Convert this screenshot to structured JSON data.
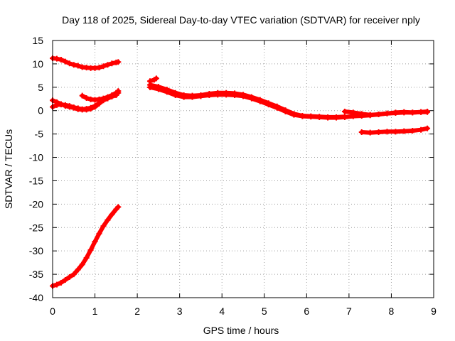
{
  "chart_data": {
    "type": "scatter",
    "title": "Day 118 of 2025, Sidereal Day-to-day VTEC variation (SDTVAR) for receiver nply",
    "xlabel": "GPS time / hours",
    "ylabel": "SDTVAR / TECUs",
    "xlim": [
      0,
      9
    ],
    "ylim": [
      -40,
      15
    ],
    "xticks": [
      "0",
      "1",
      "2",
      "3",
      "4",
      "5",
      "6",
      "7",
      "8",
      "9"
    ],
    "yticks": [
      "15",
      "10",
      "5",
      "0",
      "-5",
      "-10",
      "-15",
      "-20",
      "-25",
      "-30",
      "-35",
      "-40"
    ],
    "grid": true,
    "series_color": "#ff0000",
    "series": [
      {
        "name": "track-1",
        "x": [
          0.0,
          0.1,
          0.2,
          0.3,
          0.4,
          0.5,
          0.6,
          0.7,
          0.8,
          0.9,
          1.0,
          1.1,
          1.2,
          1.3,
          1.4,
          1.5,
          1.55
        ],
        "y": [
          11.2,
          11.1,
          10.9,
          10.5,
          10.1,
          9.8,
          9.6,
          9.3,
          9.2,
          9.1,
          9.1,
          9.2,
          9.5,
          9.8,
          10.1,
          10.3,
          10.4
        ]
      },
      {
        "name": "track-2",
        "x": [
          0.0,
          0.1,
          0.2,
          0.3,
          0.4,
          0.5,
          0.6,
          0.7,
          0.8,
          0.9,
          1.0,
          1.1,
          1.2,
          1.3,
          1.4,
          1.5,
          1.55
        ],
        "y": [
          2.2,
          1.8,
          1.4,
          1.0,
          0.8,
          0.6,
          0.3,
          0.2,
          0.2,
          0.4,
          0.8,
          1.5,
          2.3,
          2.8,
          3.2,
          3.6,
          3.8
        ]
      },
      {
        "name": "track-3",
        "x": [
          0.0,
          0.1,
          0.2,
          0.3,
          0.4,
          0.5,
          0.6,
          0.7,
          0.8,
          0.9,
          1.0,
          1.1,
          1.2,
          1.3,
          1.4,
          1.5
        ],
        "y": [
          0.8,
          1.2,
          1.3,
          1.2,
          1.0,
          0.7,
          0.5,
          0.3,
          0.4,
          0.6,
          1.0,
          1.6,
          2.2,
          2.6,
          3.0,
          3.3
        ]
      },
      {
        "name": "track-4",
        "x": [
          0.7,
          0.8,
          0.9,
          1.0,
          1.1,
          1.2,
          1.3,
          1.4,
          1.5,
          1.55
        ],
        "y": [
          3.2,
          2.7,
          2.4,
          2.3,
          2.4,
          2.6,
          2.9,
          3.3,
          3.8,
          4.2
        ]
      },
      {
        "name": "track-5",
        "x": [
          0.0,
          0.1,
          0.2,
          0.3,
          0.4,
          0.5,
          0.6,
          0.7,
          0.8,
          0.9,
          1.0,
          1.1,
          1.2,
          1.3,
          1.4,
          1.5,
          1.55
        ],
        "y": [
          -37.5,
          -37.2,
          -36.8,
          -36.2,
          -35.6,
          -35.0,
          -34.0,
          -32.9,
          -31.5,
          -29.8,
          -28.0,
          -26.3,
          -24.7,
          -23.4,
          -22.2,
          -21.1,
          -20.6
        ]
      },
      {
        "name": "track-6",
        "x": [
          2.3,
          2.4,
          2.45
        ],
        "y": [
          6.3,
          6.6,
          6.9
        ]
      },
      {
        "name": "track-7",
        "x": [
          2.3,
          2.5,
          2.7,
          2.9,
          3.1,
          3.3,
          3.5,
          3.7,
          3.9,
          4.1,
          4.3,
          4.5,
          4.7,
          4.9,
          5.1,
          5.3,
          5.5,
          5.7,
          5.9,
          6.1,
          6.3,
          6.5,
          6.7,
          6.9,
          7.1,
          7.3,
          7.5,
          7.7,
          7.9,
          8.1,
          8.3,
          8.5,
          8.7,
          8.85
        ],
        "y": [
          5.0,
          4.6,
          4.0,
          3.3,
          2.9,
          2.9,
          3.1,
          3.3,
          3.4,
          3.4,
          3.3,
          3.1,
          2.6,
          2.0,
          1.3,
          0.6,
          -0.2,
          -0.9,
          -1.2,
          -1.3,
          -1.4,
          -1.5,
          -1.5,
          -1.4,
          -1.2,
          -1.1,
          -1.0,
          -0.8,
          -0.6,
          -0.5,
          -0.4,
          -0.4,
          -0.3,
          -0.3
        ]
      },
      {
        "name": "track-8",
        "x": [
          2.3,
          2.5,
          2.7,
          2.9,
          3.1,
          3.3,
          3.5,
          3.7,
          3.9,
          4.1,
          4.3,
          4.5,
          4.7,
          4.9,
          5.1,
          5.3,
          5.5,
          5.7,
          5.9,
          6.1,
          6.3,
          6.5,
          6.7,
          6.9
        ],
        "y": [
          5.5,
          5.1,
          4.5,
          3.8,
          3.3,
          3.2,
          3.3,
          3.6,
          3.8,
          3.8,
          3.7,
          3.4,
          2.9,
          2.3,
          1.6,
          0.9,
          0.1,
          -0.7,
          -1.1,
          -1.2,
          -1.3,
          -1.4,
          -1.4,
          -1.3
        ]
      },
      {
        "name": "track-9",
        "x": [
          6.9,
          7.1,
          7.3,
          7.5,
          7.7,
          7.9,
          8.1,
          8.3,
          8.5,
          8.7,
          8.85
        ],
        "y": [
          -0.2,
          -0.4,
          -0.7,
          -0.9,
          -0.8,
          -0.6,
          -0.4,
          -0.3,
          -0.4,
          -0.3,
          -0.2
        ]
      },
      {
        "name": "track-10",
        "x": [
          7.3,
          7.5,
          7.7,
          7.9,
          8.1,
          8.3,
          8.5,
          8.7,
          8.85
        ],
        "y": [
          -4.6,
          -4.7,
          -4.6,
          -4.5,
          -4.5,
          -4.4,
          -4.3,
          -4.1,
          -3.8
        ]
      }
    ]
  }
}
